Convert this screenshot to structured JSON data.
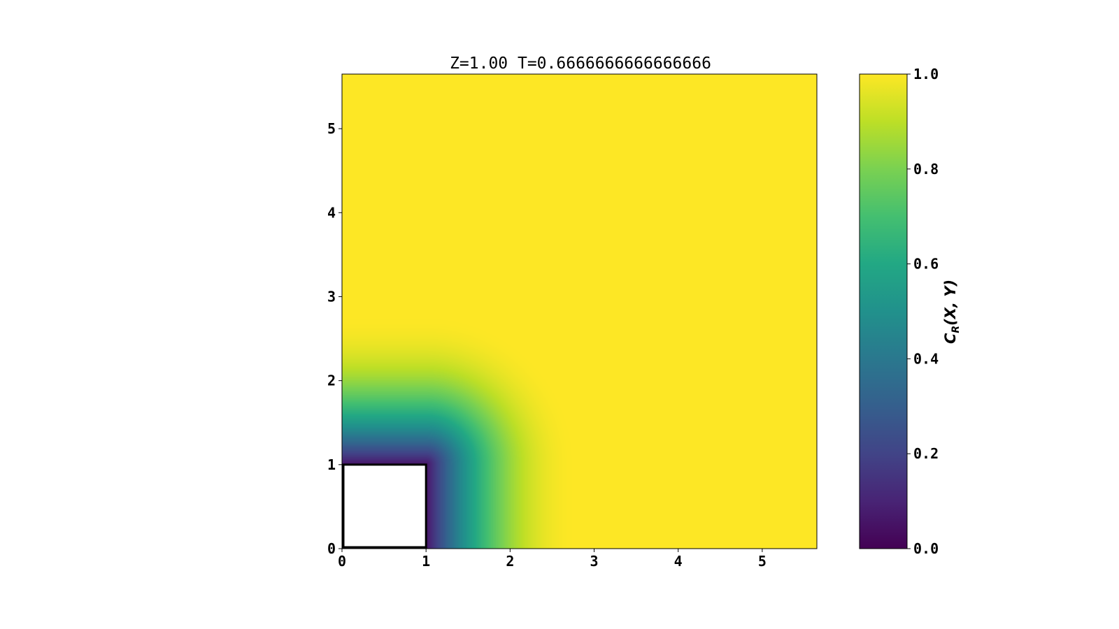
{
  "chart_data": {
    "type": "heatmap",
    "title": "Z=1.00 T=0.6666666666666666",
    "xlabel": "",
    "ylabel": "",
    "xlim": [
      0,
      5.65
    ],
    "ylim": [
      0,
      5.65
    ],
    "x_ticks": [
      "0",
      "1",
      "2",
      "3",
      "4",
      "5"
    ],
    "y_ticks": [
      "0",
      "1",
      "2",
      "3",
      "4",
      "5"
    ],
    "field": {
      "description_of_values": "concentration field, minimum near the square obstacle, rising to 1.0 far away",
      "obstacle": {
        "x": [
          0,
          1
        ],
        "y": [
          0,
          1
        ]
      },
      "near_value": 0.05,
      "far_value": 1.0,
      "transition_width": 1.8
    },
    "colorbar": {
      "label": "C_R(X, Y)",
      "label_main": "C",
      "label_sub": "R",
      "label_rest": "(X, Y)",
      "range": [
        0.0,
        1.0
      ],
      "ticks": [
        "0.0",
        "0.2",
        "0.4",
        "0.6",
        "0.8",
        "1.0"
      ],
      "colormap": "viridis"
    },
    "grid": false
  }
}
